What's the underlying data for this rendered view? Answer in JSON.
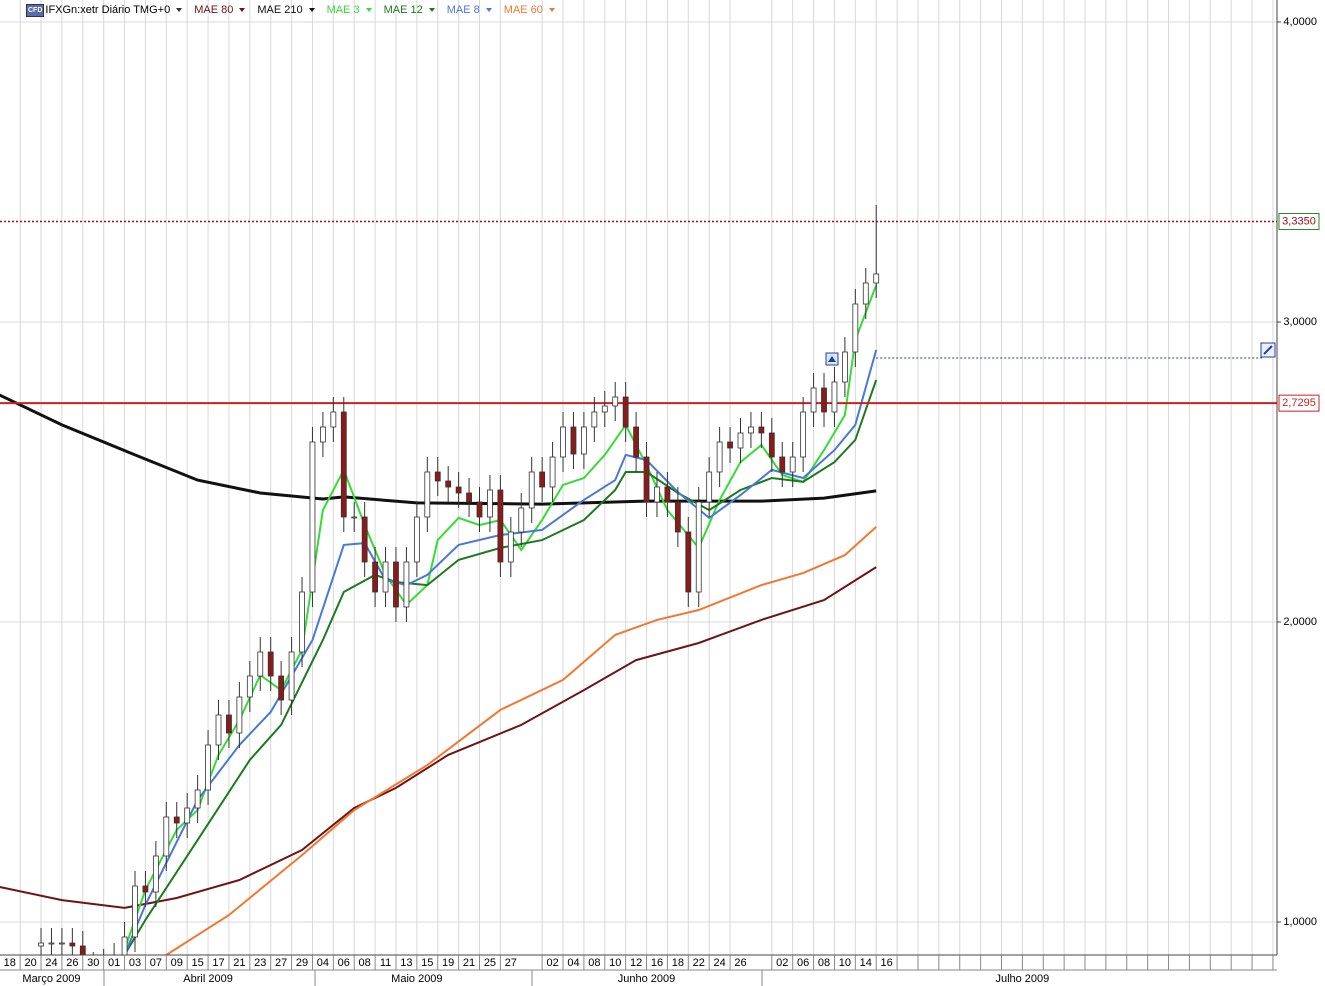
{
  "chart_data": {
    "type": "candlestick",
    "badge": "CFD",
    "title": "IFXGn:xetr Diário TMG+0",
    "up_color": "#ffffff",
    "down_color": "#8b1a1a",
    "open": [
      0.92,
      0.93,
      0.93,
      0.93,
      0.92,
      0.85,
      0.85,
      0.86,
      0.88,
      0.95,
      1.12,
      1.1,
      1.22,
      1.35,
      1.33,
      1.38,
      1.44,
      1.59,
      1.69,
      1.63,
      1.75,
      1.82,
      1.9,
      1.82,
      1.74,
      1.9,
      2.1,
      2.6,
      2.65,
      2.7,
      2.35,
      2.35,
      2.2,
      2.1,
      2.2,
      2.05,
      2.2,
      2.35,
      2.5,
      2.47,
      2.45,
      2.43,
      2.4,
      2.35,
      2.44,
      2.2,
      2.3,
      2.38,
      2.5,
      2.45,
      2.55,
      2.65,
      2.56,
      2.65,
      2.7,
      2.72,
      2.75,
      2.65,
      2.55,
      2.4,
      2.45,
      2.4,
      2.3,
      2.1,
      2.4,
      2.5,
      2.6,
      2.58,
      2.63,
      2.65,
      2.63,
      2.55,
      2.5,
      2.55,
      2.7,
      2.78,
      2.7,
      2.8,
      2.9,
      3.06,
      3.13
    ],
    "high": [
      0.98,
      0.98,
      0.98,
      0.98,
      0.97,
      0.9,
      0.91,
      0.93,
      1.0,
      1.17,
      1.17,
      1.27,
      1.4,
      1.4,
      1.43,
      1.49,
      1.64,
      1.74,
      1.74,
      1.8,
      1.87,
      1.95,
      1.95,
      1.87,
      1.95,
      2.15,
      2.65,
      2.7,
      2.75,
      2.75,
      2.4,
      2.4,
      2.25,
      2.25,
      2.25,
      2.25,
      2.4,
      2.55,
      2.55,
      2.52,
      2.5,
      2.48,
      2.45,
      2.49,
      2.49,
      2.35,
      2.43,
      2.55,
      2.55,
      2.6,
      2.7,
      2.7,
      2.7,
      2.75,
      2.77,
      2.8,
      2.8,
      2.7,
      2.6,
      2.5,
      2.5,
      2.45,
      2.35,
      2.45,
      2.55,
      2.65,
      2.65,
      2.68,
      2.7,
      2.7,
      2.68,
      2.6,
      2.6,
      2.75,
      2.83,
      2.83,
      2.85,
      2.95,
      3.11,
      3.18,
      3.39
    ],
    "low": [
      0.87,
      0.88,
      0.88,
      0.87,
      0.8,
      0.8,
      0.8,
      0.81,
      0.83,
      0.9,
      1.05,
      1.05,
      1.17,
      1.28,
      1.28,
      1.33,
      1.39,
      1.54,
      1.58,
      1.58,
      1.7,
      1.77,
      1.77,
      1.69,
      1.69,
      1.85,
      2.05,
      2.55,
      2.6,
      2.3,
      2.3,
      2.15,
      2.05,
      2.05,
      2.0,
      2.0,
      2.15,
      2.3,
      2.42,
      2.4,
      2.38,
      2.35,
      2.3,
      2.3,
      2.15,
      2.15,
      2.25,
      2.33,
      2.4,
      2.4,
      2.5,
      2.51,
      2.51,
      2.6,
      2.65,
      2.67,
      2.6,
      2.5,
      2.35,
      2.35,
      2.35,
      2.25,
      2.05,
      2.05,
      2.35,
      2.45,
      2.53,
      2.53,
      2.58,
      2.58,
      2.5,
      2.45,
      2.45,
      2.5,
      2.65,
      2.65,
      2.65,
      2.75,
      2.85,
      3.01,
      3.08
    ],
    "close": [
      0.93,
      0.93,
      0.93,
      0.92,
      0.85,
      0.85,
      0.86,
      0.88,
      0.95,
      1.12,
      1.1,
      1.22,
      1.35,
      1.33,
      1.38,
      1.44,
      1.59,
      1.69,
      1.63,
      1.75,
      1.82,
      1.9,
      1.82,
      1.74,
      1.9,
      2.1,
      2.6,
      2.65,
      2.7,
      2.35,
      2.35,
      2.2,
      2.1,
      2.2,
      2.05,
      2.2,
      2.35,
      2.5,
      2.47,
      2.45,
      2.43,
      2.4,
      2.35,
      2.44,
      2.2,
      2.3,
      2.38,
      2.5,
      2.45,
      2.55,
      2.65,
      2.56,
      2.65,
      2.7,
      2.72,
      2.75,
      2.65,
      2.55,
      2.4,
      2.45,
      2.4,
      2.3,
      2.1,
      2.4,
      2.5,
      2.6,
      2.58,
      2.63,
      2.65,
      2.63,
      2.55,
      2.5,
      2.55,
      2.7,
      2.78,
      2.7,
      2.8,
      2.9,
      3.06,
      3.13,
      3.16
    ],
    "series": [
      {
        "name": "MAE 80",
        "color": "#6e1414",
        "x": [
          -4,
          2,
          8,
          13,
          19,
          25,
          30,
          34,
          39,
          46,
          52,
          57,
          63,
          69,
          75,
          80
        ],
        "values": [
          1.117,
          1.073,
          1.047,
          1.08,
          1.14,
          1.24,
          1.38,
          1.447,
          1.557,
          1.657,
          1.773,
          1.873,
          1.93,
          2.007,
          2.073,
          2.183
        ]
      },
      {
        "name": "MAE 210",
        "color": "#111111",
        "x": [
          -4,
          2,
          9,
          15,
          21,
          27,
          29,
          36,
          48,
          58,
          69,
          75,
          80
        ],
        "values": [
          2.757,
          2.657,
          2.557,
          2.473,
          2.43,
          2.41,
          2.417,
          2.397,
          2.393,
          2.403,
          2.403,
          2.413,
          2.437
        ]
      },
      {
        "name": "MAE 3",
        "color": "#33dd33",
        "x": [
          8,
          10,
          13,
          15,
          17,
          19,
          21,
          23,
          25,
          27,
          29,
          31,
          33,
          35,
          37,
          38,
          40,
          42,
          44,
          46,
          48,
          50,
          52,
          54,
          56,
          58,
          60,
          63,
          65,
          67,
          69,
          71,
          73,
          75,
          77,
          78,
          80
        ],
        "values": [
          0.907,
          1.107,
          1.307,
          1.373,
          1.557,
          1.673,
          1.823,
          1.773,
          1.907,
          2.373,
          2.507,
          2.323,
          2.157,
          2.057,
          2.123,
          2.273,
          2.347,
          2.323,
          2.34,
          2.24,
          2.34,
          2.457,
          2.48,
          2.557,
          2.657,
          2.523,
          2.373,
          2.247,
          2.407,
          2.533,
          2.59,
          2.49,
          2.467,
          2.573,
          2.69,
          2.94,
          3.123
        ]
      },
      {
        "name": "MAE 12",
        "color": "#1e7a1e",
        "x": [
          8,
          10,
          15,
          20,
          23,
          27,
          29,
          32,
          34,
          37,
          40,
          44,
          48,
          52,
          55,
          56,
          58,
          61,
          64,
          67,
          70,
          73,
          76,
          78,
          80
        ],
        "values": [
          0.89,
          1.007,
          1.273,
          1.54,
          1.657,
          1.94,
          2.1,
          2.157,
          2.133,
          2.123,
          2.207,
          2.247,
          2.273,
          2.34,
          2.44,
          2.5,
          2.5,
          2.43,
          2.373,
          2.44,
          2.48,
          2.467,
          2.533,
          2.607,
          2.807
        ]
      },
      {
        "name": "MAE 8",
        "color": "#4a78d8",
        "x": [
          8,
          10,
          15,
          19,
          22,
          26,
          29,
          31,
          33,
          35,
          37,
          40,
          44,
          48,
          52,
          55,
          56,
          58,
          61,
          64,
          67,
          70,
          73,
          76,
          78,
          80
        ],
        "values": [
          0.89,
          1.057,
          1.407,
          1.59,
          1.7,
          1.94,
          2.257,
          2.263,
          2.14,
          2.123,
          2.157,
          2.257,
          2.29,
          2.307,
          2.407,
          2.473,
          2.557,
          2.54,
          2.433,
          2.347,
          2.423,
          2.507,
          2.48,
          2.573,
          2.657,
          2.907
        ]
      },
      {
        "name": "MAE 60",
        "color": "#f07830",
        "x": [
          12,
          18,
          25,
          30,
          37,
          44,
          50,
          55,
          59,
          63,
          69,
          73,
          77,
          80
        ],
        "values": [
          0.89,
          1.023,
          1.223,
          1.373,
          1.523,
          1.707,
          1.807,
          1.957,
          2.007,
          2.04,
          2.123,
          2.163,
          2.223,
          2.317
        ]
      }
    ],
    "hlines": [
      {
        "value": 3.335,
        "label": "3,3350",
        "color": "#a01010",
        "style": "dotted",
        "border": "#2a8a2a"
      },
      {
        "value": 2.7295,
        "label": "2,7295",
        "color": "#cc2020",
        "style": "solid",
        "border": "#cc2020"
      }
    ],
    "alert_line": {
      "value": 2.88,
      "from": 80,
      "color": "#2040a0"
    },
    "xlim": [
      -3.93,
      118.39
    ],
    "ylim": [
      0.89,
      4.0733
    ],
    "yticks": [
      {
        "value": 1,
        "label": "1,0000"
      },
      {
        "value": 2,
        "label": "2,0000"
      },
      {
        "value": 3,
        "label": "3,0000"
      },
      {
        "value": 4,
        "label": "4,0000"
      }
    ],
    "xticks": [
      {
        "value": -3,
        "label": "18"
      },
      {
        "value": -1,
        "label": "20"
      },
      {
        "value": 1,
        "label": "24"
      },
      {
        "value": 3,
        "label": "26"
      },
      {
        "value": 5,
        "label": "30"
      },
      {
        "value": 7,
        "label": "01"
      },
      {
        "value": 9,
        "label": "03"
      },
      {
        "value": 11,
        "label": "07"
      },
      {
        "value": 13,
        "label": "09"
      },
      {
        "value": 15,
        "label": "15"
      },
      {
        "value": 17,
        "label": "17"
      },
      {
        "value": 19,
        "label": "21"
      },
      {
        "value": 21,
        "label": "23"
      },
      {
        "value": 23,
        "label": "27"
      },
      {
        "value": 25,
        "label": "29"
      },
      {
        "value": 27,
        "label": "04"
      },
      {
        "value": 29,
        "label": "06"
      },
      {
        "value": 31,
        "label": "08"
      },
      {
        "value": 33,
        "label": "11"
      },
      {
        "value": 35,
        "label": "13"
      },
      {
        "value": 37,
        "label": "15"
      },
      {
        "value": 39,
        "label": "19"
      },
      {
        "value": 41,
        "label": "21"
      },
      {
        "value": 43,
        "label": "25"
      },
      {
        "value": 45,
        "label": "27"
      },
      {
        "value": 49,
        "label": "02"
      },
      {
        "value": 51,
        "label": "04"
      },
      {
        "value": 53,
        "label": "08"
      },
      {
        "value": 55,
        "label": "10"
      },
      {
        "value": 57,
        "label": "12"
      },
      {
        "value": 59,
        "label": "16"
      },
      {
        "value": 61,
        "label": "18"
      },
      {
        "value": 63,
        "label": "22"
      },
      {
        "value": 65,
        "label": "24"
      },
      {
        "value": 67,
        "label": "26"
      },
      {
        "value": 71,
        "label": "02"
      },
      {
        "value": 73,
        "label": "06"
      },
      {
        "value": 75,
        "label": "08"
      },
      {
        "value": 77,
        "label": "10"
      },
      {
        "value": 79,
        "label": "14"
      },
      {
        "value": 81,
        "label": "16"
      }
    ],
    "months": [
      {
        "value": 1,
        "label": "Março 2009"
      },
      {
        "value": 16,
        "label": "Abril 2009"
      },
      {
        "value": 36,
        "label": "Maio 2009"
      },
      {
        "value": 58,
        "label": "Junho 2009"
      },
      {
        "value": 94,
        "label": "Julho 2009"
      }
    ],
    "grid": true
  }
}
